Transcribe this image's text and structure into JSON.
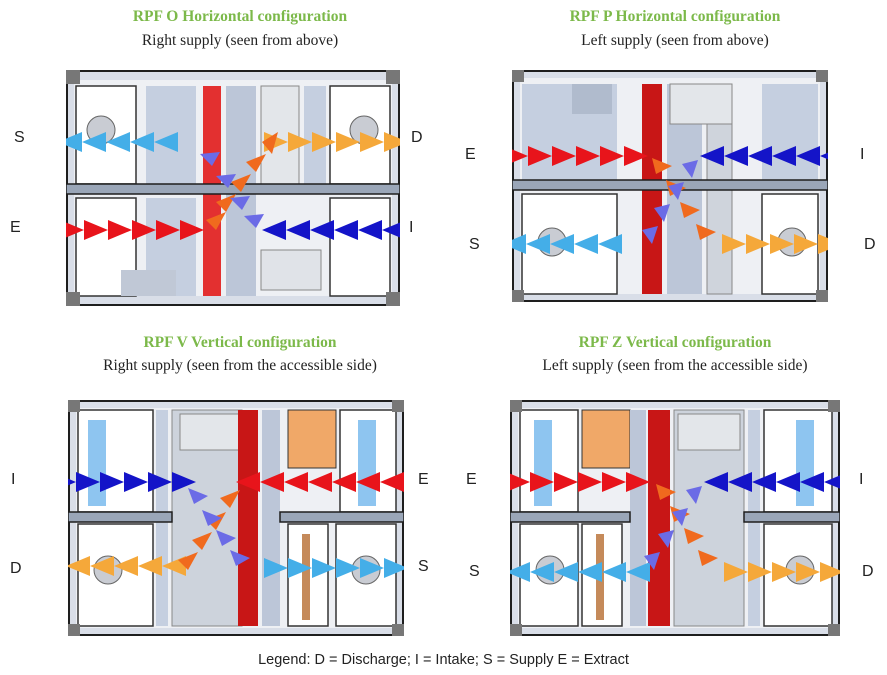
{
  "colors": {
    "extract": "#e8141b",
    "intake": "#1414c8",
    "supply": "#44aee8",
    "discharge": "#f5a83a",
    "cross_warm": "#f06a1e",
    "cross_cool": "#6b6be6",
    "title_green": "#7cb94a",
    "frame": "#1e1e1e",
    "panel": "#b7c3d6"
  },
  "panels": [
    {
      "title": "RPF O Horizontal configuration",
      "subtitle": "Right supply  (seen from above)",
      "labels": {
        "top_left": "S",
        "top_right": "D",
        "bottom_left": "E",
        "bottom_right": "I"
      }
    },
    {
      "title": "RPF P Horizontal configuration",
      "subtitle": "Left supply (seen from above)",
      "labels": {
        "top_left": "E",
        "top_right": "I",
        "bottom_left": "S",
        "bottom_right": "D"
      }
    },
    {
      "title": "RPF V Vertical configuration",
      "subtitle": "Right supply  (seen from the accessible side)",
      "labels": {
        "top_left": "I",
        "top_right": "E",
        "bottom_left": "D",
        "bottom_right": "S"
      }
    },
    {
      "title": "RPF Z Vertical configuration",
      "subtitle": "Left supply  (seen from the accessible side)",
      "labels": {
        "top_left": "E",
        "top_right": "I",
        "bottom_left": "S",
        "bottom_right": "D"
      }
    }
  ],
  "legend": "Legend: D = Discharge; I = Intake; S = Supply E = Extract"
}
